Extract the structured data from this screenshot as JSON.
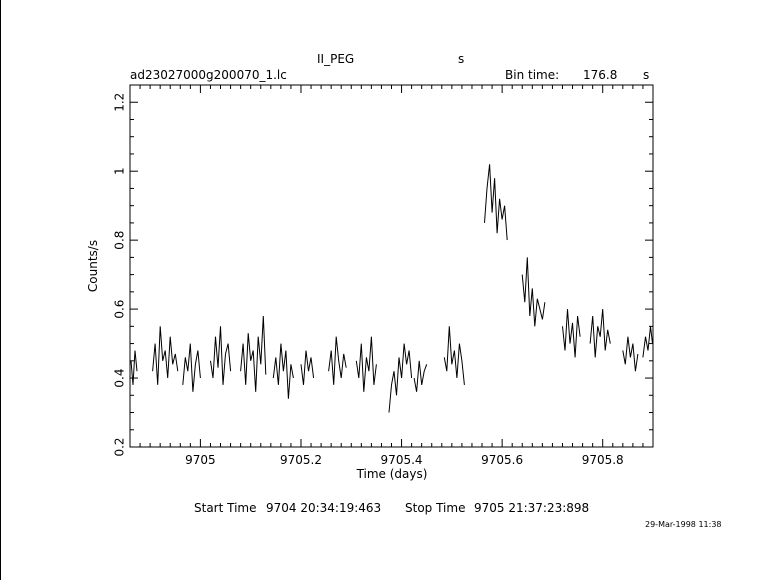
{
  "header": {
    "object": "II_PEG",
    "units_top": "s",
    "filename": "ad23027000g200070_1.lc",
    "bin_label": "Bin time:",
    "bin_value": "176.8",
    "bin_unit": "s"
  },
  "footer": {
    "start_label": "Start Time",
    "start_value": "9704 20:34:19:463",
    "stop_label": "Stop Time",
    "stop_value": "9705 21:37:23:898",
    "date_stamp": "29-Mar-1998 11:38"
  },
  "chart_data": {
    "type": "line",
    "xlabel": "Time (days)",
    "ylabel": "Counts/s",
    "xlim": [
      9704.86,
      9705.9
    ],
    "ylim": [
      0.2,
      1.25
    ],
    "x_ticks": [
      9705,
      9705.2,
      9705.4,
      9705.6,
      9705.8
    ],
    "x_tick_labels": [
      "9705",
      "9705.2",
      "9705.4",
      "9705.6",
      "9705.8"
    ],
    "y_ticks": [
      0.2,
      0.4,
      0.6,
      0.8,
      1,
      1.2
    ],
    "y_tick_labels": [
      "0.2",
      "0.4",
      "0.6",
      "0.8",
      "1",
      "1.2"
    ],
    "segments": [
      {
        "x": [
          9704.862,
          9704.866,
          9704.87,
          9704.874
        ],
        "y": [
          0.45,
          0.38,
          0.48,
          0.42
        ]
      },
      {
        "x": [
          9704.905,
          9704.91,
          9704.915,
          9704.92,
          9704.925,
          9704.93,
          9704.935,
          9704.94,
          9704.945,
          9704.95,
          9704.955
        ],
        "y": [
          0.42,
          0.5,
          0.38,
          0.55,
          0.45,
          0.48,
          0.4,
          0.52,
          0.44,
          0.47,
          0.42
        ]
      },
      {
        "x": [
          9704.965,
          9704.97,
          9704.975,
          9704.98,
          9704.985,
          9704.99,
          9704.995,
          9705.0
        ],
        "y": [
          0.38,
          0.46,
          0.42,
          0.5,
          0.36,
          0.44,
          0.48,
          0.4
        ]
      },
      {
        "x": [
          9705.02,
          9705.025,
          9705.03,
          9705.035,
          9705.04,
          9705.045,
          9705.05,
          9705.055,
          9705.06
        ],
        "y": [
          0.45,
          0.4,
          0.52,
          0.43,
          0.55,
          0.38,
          0.47,
          0.5,
          0.42
        ]
      },
      {
        "x": [
          9705.08,
          9705.085,
          9705.09,
          9705.095,
          9705.1,
          9705.105,
          9705.11,
          9705.115,
          9705.12,
          9705.125,
          9705.13
        ],
        "y": [
          0.42,
          0.5,
          0.38,
          0.53,
          0.45,
          0.48,
          0.36,
          0.52,
          0.44,
          0.58,
          0.41
        ]
      },
      {
        "x": [
          9705.145,
          9705.15,
          9705.155,
          9705.16,
          9705.165,
          9705.17,
          9705.175,
          9705.18,
          9705.185
        ],
        "y": [
          0.4,
          0.46,
          0.38,
          0.5,
          0.42,
          0.48,
          0.34,
          0.44,
          0.4
        ]
      },
      {
        "x": [
          9705.2,
          9705.205,
          9705.21,
          9705.215,
          9705.22,
          9705.225
        ],
        "y": [
          0.44,
          0.38,
          0.48,
          0.42,
          0.46,
          0.4
        ]
      },
      {
        "x": [
          9705.255,
          9705.26,
          9705.265,
          9705.27,
          9705.275,
          9705.28,
          9705.285,
          9705.29
        ],
        "y": [
          0.42,
          0.48,
          0.38,
          0.52,
          0.45,
          0.4,
          0.47,
          0.43
        ]
      },
      {
        "x": [
          9705.31,
          9705.315,
          9705.32,
          9705.325,
          9705.33,
          9705.335,
          9705.34,
          9705.345,
          9705.35
        ],
        "y": [
          0.45,
          0.4,
          0.5,
          0.36,
          0.46,
          0.42,
          0.52,
          0.38,
          0.44
        ]
      },
      {
        "x": [
          9705.375,
          9705.38,
          9705.385,
          9705.39,
          9705.395,
          9705.4,
          9705.405,
          9705.41,
          9705.415,
          9705.42
        ],
        "y": [
          0.3,
          0.38,
          0.42,
          0.35,
          0.46,
          0.4,
          0.5,
          0.44,
          0.48,
          0.4
        ]
      },
      {
        "x": [
          9705.425,
          9705.43,
          9705.435,
          9705.44,
          9705.445,
          9705.45
        ],
        "y": [
          0.4,
          0.36,
          0.45,
          0.38,
          0.42,
          0.44
        ]
      },
      {
        "x": [
          9705.485,
          9705.49,
          9705.495,
          9705.5,
          9705.505,
          9705.51,
          9705.515,
          9705.52,
          9705.525
        ],
        "y": [
          0.46,
          0.42,
          0.55,
          0.44,
          0.48,
          0.4,
          0.5,
          0.45,
          0.38
        ]
      },
      {
        "x": [
          9705.565,
          9705.57,
          9705.575,
          9705.58,
          9705.585,
          9705.59,
          9705.595,
          9705.6,
          9705.605,
          9705.61
        ],
        "y": [
          0.85,
          0.95,
          1.02,
          0.88,
          0.98,
          0.82,
          0.92,
          0.86,
          0.9,
          0.8
        ]
      },
      {
        "x": [
          9705.64,
          9705.645,
          9705.65,
          9705.655,
          9705.66,
          9705.665,
          9705.67,
          9705.675,
          9705.68,
          9705.685
        ],
        "y": [
          0.7,
          0.62,
          0.75,
          0.58,
          0.66,
          0.55,
          0.63,
          0.6,
          0.57,
          0.62
        ]
      },
      {
        "x": [
          9705.72,
          9705.725,
          9705.73,
          9705.735,
          9705.74,
          9705.745,
          9705.75,
          9705.755
        ],
        "y": [
          0.55,
          0.48,
          0.6,
          0.5,
          0.56,
          0.46,
          0.58,
          0.52
        ]
      },
      {
        "x": [
          9705.775,
          9705.78,
          9705.785,
          9705.79,
          9705.795,
          9705.8,
          9705.805,
          9705.81,
          9705.815
        ],
        "y": [
          0.5,
          0.58,
          0.46,
          0.55,
          0.52,
          0.6,
          0.48,
          0.54,
          0.5
        ]
      },
      {
        "x": [
          9705.84,
          9705.845,
          9705.85,
          9705.855,
          9705.86,
          9705.865,
          9705.87
        ],
        "y": [
          0.48,
          0.44,
          0.52,
          0.46,
          0.5,
          0.42,
          0.47
        ]
      },
      {
        "x": [
          9705.88,
          9705.885,
          9705.89,
          9705.895,
          9705.899
        ],
        "y": [
          0.46,
          0.52,
          0.48,
          0.55,
          0.5
        ]
      }
    ]
  }
}
